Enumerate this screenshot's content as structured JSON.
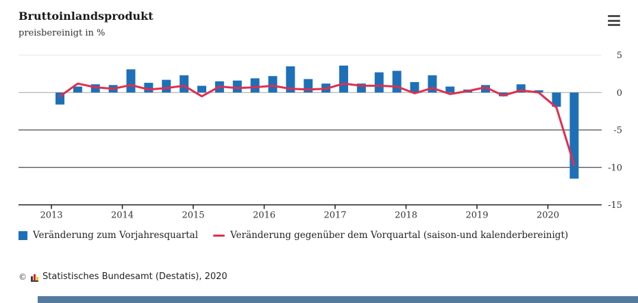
{
  "header": {
    "title": "Bruttoinlandsprodukt",
    "subtitle": "preisbereinigt in %"
  },
  "menu": {
    "icon": "hamburger-menu-icon"
  },
  "chart_data": {
    "type": "combo-bar-line",
    "title": "Bruttoinlandsprodukt",
    "subtitle": "preisbereinigt in %",
    "unit": "%",
    "categories": [
      "2013 Q1",
      "2013 Q2",
      "2013 Q3",
      "2013 Q4",
      "2014 Q1",
      "2014 Q2",
      "2014 Q3",
      "2014 Q4",
      "2015 Q1",
      "2015 Q2",
      "2015 Q3",
      "2015 Q4",
      "2016 Q1",
      "2016 Q2",
      "2016 Q3",
      "2016 Q4",
      "2017 Q1",
      "2017 Q2",
      "2017 Q3",
      "2017 Q4",
      "2018 Q1",
      "2018 Q2",
      "2018 Q3",
      "2018 Q4",
      "2019 Q1",
      "2019 Q2",
      "2019 Q3",
      "2019 Q4",
      "2020 Q1",
      "2020 Q2"
    ],
    "series": [
      {
        "name": "Veränderung zum Vorjahresquartal",
        "type": "bar",
        "color": "#1d70b8",
        "values": [
          -1.6,
          0.8,
          1.1,
          1.0,
          3.1,
          1.3,
          1.7,
          2.3,
          0.9,
          1.5,
          1.6,
          1.9,
          2.2,
          3.5,
          1.8,
          1.2,
          3.6,
          1.2,
          2.7,
          2.9,
          1.4,
          2.3,
          0.8,
          0.4,
          1.0,
          -0.5,
          1.1,
          0.3,
          -1.9,
          -11.5
        ]
      },
      {
        "name": "Veränderung gegenüber dem Vorquartal (saison-und kalenderbereinigt)",
        "type": "line",
        "color": "#e32d4d",
        "values": [
          -0.5,
          1.2,
          0.7,
          0.5,
          1.0,
          0.4,
          0.6,
          0.9,
          -0.5,
          0.8,
          0.6,
          0.7,
          0.9,
          0.5,
          0.4,
          0.5,
          1.2,
          0.9,
          0.9,
          0.8,
          -0.1,
          0.6,
          -0.2,
          0.2,
          0.7,
          -0.4,
          0.3,
          0.0,
          -2.0,
          -9.7
        ]
      }
    ],
    "x_tick_labels": [
      "2013",
      "2014",
      "2015",
      "2016",
      "2017",
      "2018",
      "2019",
      "2020"
    ],
    "y_ticks": [
      5,
      0,
      -5,
      -10,
      -15
    ],
    "ylim": [
      -15,
      5
    ],
    "legend_position": "bottom",
    "grid": "horizontal"
  },
  "footer": {
    "copyright_symbol": "©",
    "source": "Statistisches Bundesamt (Destatis), 2020",
    "logo": "destatis-logo-icon"
  }
}
